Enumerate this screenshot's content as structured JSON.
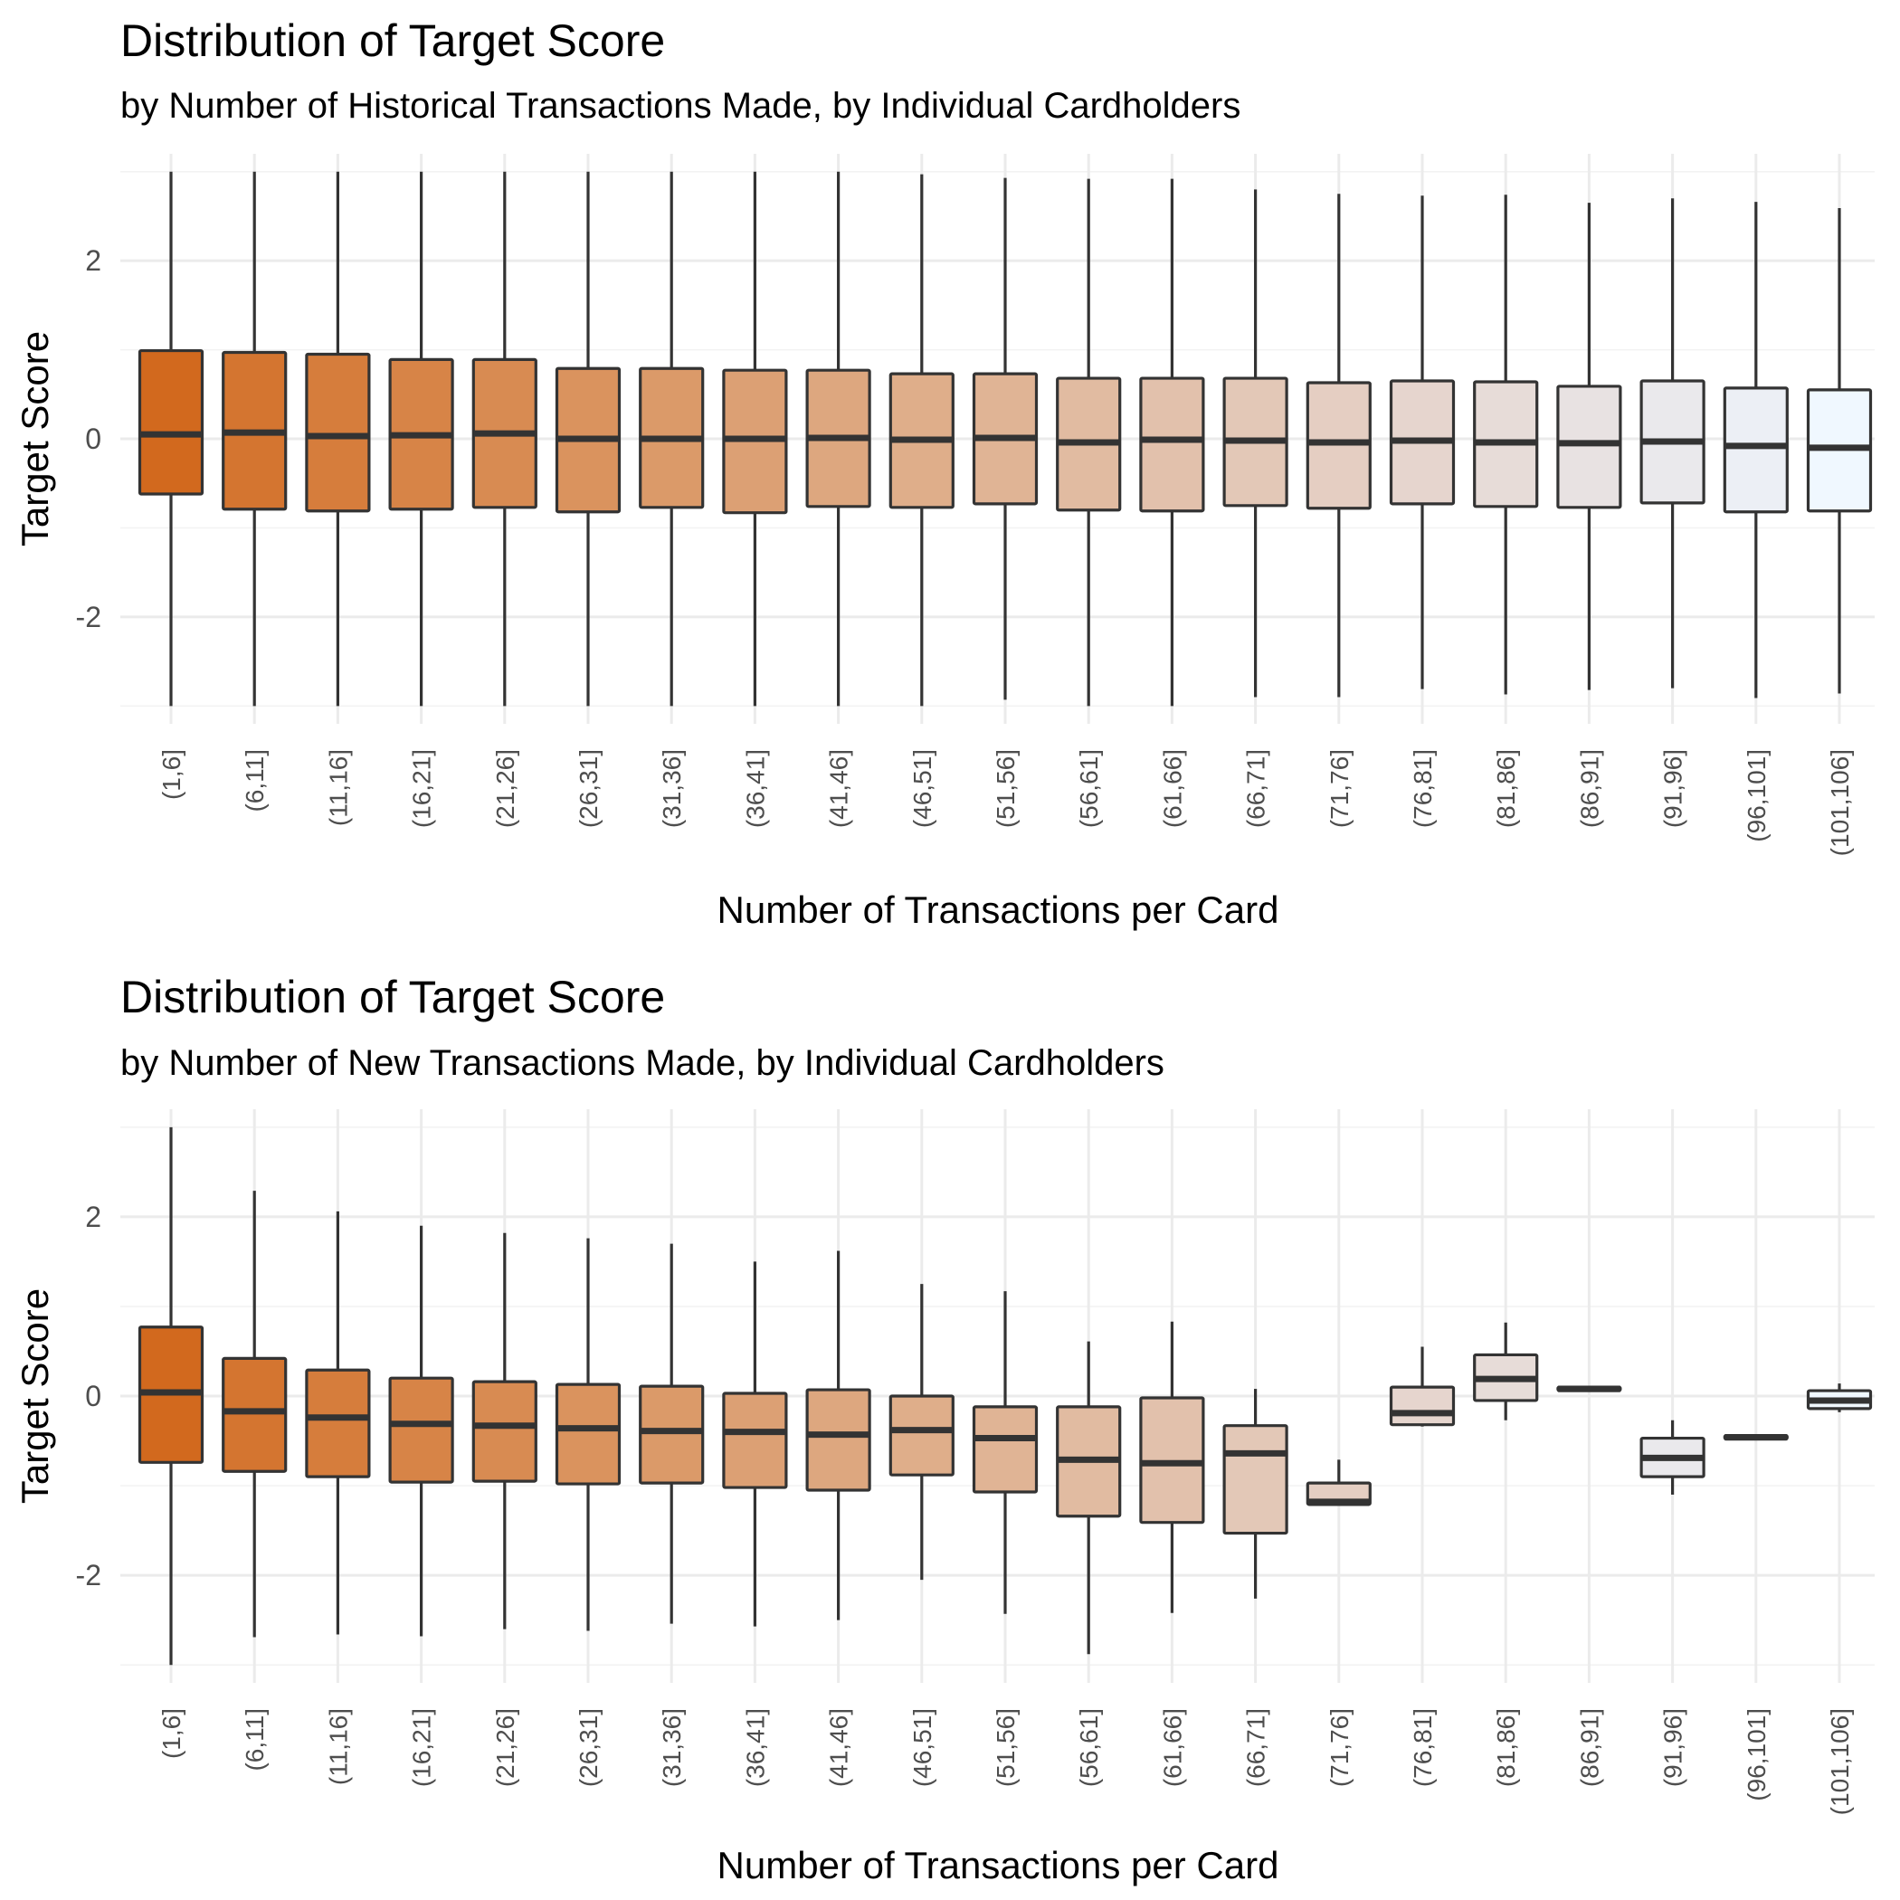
{
  "chart_data": [
    {
      "type": "boxplot",
      "title": "Distribution of Target Score",
      "subtitle": "by Number of Historical Transactions Made, by Individual Cardholders",
      "xlabel": "Number of Transactions per Card",
      "ylabel": "Target Score",
      "ylim": [
        -3.2,
        3.2
      ],
      "yticks": [
        -2,
        0,
        2
      ],
      "ytick_labels": [
        "-2",
        "0",
        "2"
      ],
      "grid": true,
      "legend": "none",
      "categories": [
        "(1,6]",
        "(6,11]",
        "(11,16]",
        "(16,21]",
        "(21,26]",
        "(26,31]",
        "(31,36]",
        "(36,41]",
        "(41,46]",
        "(46,51]",
        "(51,56]",
        "(56,61]",
        "(61,66]",
        "(66,71]",
        "(71,76]",
        "(76,81]",
        "(81,86]",
        "(86,91]",
        "(91,96]",
        "(96,101]",
        "(101,106]"
      ],
      "boxes": [
        {
          "min": -3.0,
          "q1": -0.62,
          "median": 0.05,
          "q3": 0.99,
          "max": 3.0
        },
        {
          "min": -3.0,
          "q1": -0.79,
          "median": 0.07,
          "q3": 0.97,
          "max": 3.0
        },
        {
          "min": -3.0,
          "q1": -0.81,
          "median": 0.03,
          "q3": 0.95,
          "max": 3.0
        },
        {
          "min": -3.0,
          "q1": -0.79,
          "median": 0.04,
          "q3": 0.89,
          "max": 3.0
        },
        {
          "min": -3.0,
          "q1": -0.77,
          "median": 0.06,
          "q3": 0.89,
          "max": 3.0
        },
        {
          "min": -3.0,
          "q1": -0.82,
          "median": 0.0,
          "q3": 0.79,
          "max": 3.0
        },
        {
          "min": -3.0,
          "q1": -0.77,
          "median": 0.0,
          "q3": 0.79,
          "max": 3.0
        },
        {
          "min": -3.0,
          "q1": -0.83,
          "median": 0.0,
          "q3": 0.77,
          "max": 3.0
        },
        {
          "min": -3.0,
          "q1": -0.76,
          "median": 0.01,
          "q3": 0.77,
          "max": 3.0
        },
        {
          "min": -3.0,
          "q1": -0.77,
          "median": -0.01,
          "q3": 0.73,
          "max": 2.97
        },
        {
          "min": -2.93,
          "q1": -0.73,
          "median": 0.01,
          "q3": 0.73,
          "max": 2.93
        },
        {
          "min": -3.0,
          "q1": -0.8,
          "median": -0.04,
          "q3": 0.68,
          "max": 2.92
        },
        {
          "min": -3.0,
          "q1": -0.81,
          "median": -0.01,
          "q3": 0.68,
          "max": 2.92
        },
        {
          "min": -2.9,
          "q1": -0.75,
          "median": -0.02,
          "q3": 0.68,
          "max": 2.8
        },
        {
          "min": -2.9,
          "q1": -0.78,
          "median": -0.04,
          "q3": 0.63,
          "max": 2.75
        },
        {
          "min": -2.81,
          "q1": -0.73,
          "median": -0.02,
          "q3": 0.65,
          "max": 2.73
        },
        {
          "min": -2.87,
          "q1": -0.76,
          "median": -0.04,
          "q3": 0.64,
          "max": 2.74
        },
        {
          "min": -2.82,
          "q1": -0.77,
          "median": -0.05,
          "q3": 0.59,
          "max": 2.65
        },
        {
          "min": -2.8,
          "q1": -0.72,
          "median": -0.03,
          "q3": 0.65,
          "max": 2.7
        },
        {
          "min": -2.91,
          "q1": -0.82,
          "median": -0.08,
          "q3": 0.57,
          "max": 2.66
        },
        {
          "min": -2.86,
          "q1": -0.81,
          "median": -0.1,
          "q3": 0.55,
          "max": 2.59
        }
      ]
    },
    {
      "type": "boxplot",
      "title": "Distribution of Target Score",
      "subtitle": "by Number of New Transactions Made, by Individual Cardholders",
      "xlabel": "Number of Transactions per Card",
      "ylabel": "Target Score",
      "ylim": [
        -3.2,
        3.2
      ],
      "yticks": [
        -2,
        0,
        2
      ],
      "ytick_labels": [
        "-2",
        "0",
        "2"
      ],
      "grid": true,
      "legend": "none",
      "categories": [
        "(1,6]",
        "(6,11]",
        "(11,16]",
        "(16,21]",
        "(21,26]",
        "(26,31]",
        "(31,36]",
        "(36,41]",
        "(41,46]",
        "(46,51]",
        "(51,56]",
        "(56,61]",
        "(61,66]",
        "(66,71]",
        "(71,76]",
        "(76,81]",
        "(81,86]",
        "(86,91]",
        "(91,96]",
        "(96,101]",
        "(101,106]"
      ],
      "boxes": [
        {
          "min": -3.0,
          "q1": -0.74,
          "median": 0.04,
          "q3": 0.77,
          "max": 3.0
        },
        {
          "min": -2.69,
          "q1": -0.84,
          "median": -0.17,
          "q3": 0.42,
          "max": 2.29
        },
        {
          "min": -2.66,
          "q1": -0.9,
          "median": -0.24,
          "q3": 0.29,
          "max": 2.06
        },
        {
          "min": -2.68,
          "q1": -0.96,
          "median": -0.31,
          "q3": 0.2,
          "max": 1.9
        },
        {
          "min": -2.6,
          "q1": -0.95,
          "median": -0.33,
          "q3": 0.16,
          "max": 1.82
        },
        {
          "min": -2.62,
          "q1": -0.98,
          "median": -0.36,
          "q3": 0.13,
          "max": 1.76
        },
        {
          "min": -2.54,
          "q1": -0.97,
          "median": -0.39,
          "q3": 0.11,
          "max": 1.7
        },
        {
          "min": -2.57,
          "q1": -1.02,
          "median": -0.4,
          "q3": 0.03,
          "max": 1.5
        },
        {
          "min": -2.5,
          "q1": -1.05,
          "median": -0.43,
          "q3": 0.07,
          "max": 1.62
        },
        {
          "min": -2.05,
          "q1": -0.88,
          "median": -0.38,
          "q3": 0.0,
          "max": 1.25
        },
        {
          "min": -2.43,
          "q1": -1.07,
          "median": -0.47,
          "q3": -0.12,
          "max": 1.17
        },
        {
          "min": -2.88,
          "q1": -1.34,
          "median": -0.71,
          "q3": -0.12,
          "max": 0.61
        },
        {
          "min": -2.42,
          "q1": -1.41,
          "median": -0.75,
          "q3": -0.02,
          "max": 0.83
        },
        {
          "min": -2.26,
          "q1": -1.53,
          "median": -0.64,
          "q3": -0.33,
          "max": 0.08
        },
        {
          "min": -1.22,
          "q1": -1.21,
          "median": -1.18,
          "q3": -0.97,
          "max": -0.71
        },
        {
          "min": -0.34,
          "q1": -0.32,
          "median": -0.19,
          "q3": 0.1,
          "max": 0.55
        },
        {
          "min": -0.27,
          "q1": -0.05,
          "median": 0.19,
          "q3": 0.46,
          "max": 0.82
        },
        {
          "min": 0.06,
          "q1": 0.06,
          "median": 0.08,
          "q3": 0.1,
          "max": 0.1
        },
        {
          "min": -1.1,
          "q1": -0.9,
          "median": -0.69,
          "q3": -0.47,
          "max": -0.27
        },
        {
          "min": -0.48,
          "q1": -0.48,
          "median": -0.46,
          "q3": -0.44,
          "max": -0.44
        },
        {
          "min": -0.18,
          "q1": -0.14,
          "median": -0.05,
          "q3": 0.06,
          "max": 0.14
        }
      ]
    }
  ],
  "colors": {
    "fill_scale": [
      "#D2691E",
      "#D47530",
      "#D67D3C",
      "#D78447",
      "#D88B52",
      "#DA935E",
      "#DB9A69",
      "#DCA074",
      "#DDA77F",
      "#DFAE8A",
      "#E0B495",
      "#E1BBA1",
      "#E2C1AC",
      "#E3C8B7",
      "#E5CEC2",
      "#E6D5CE",
      "#E7DCD8",
      "#E8E2E2",
      "#EAE9EC",
      "#ECEFF5",
      "#F0F8FF"
    ],
    "outline": "#333333",
    "grid": "#EBEBEB"
  }
}
